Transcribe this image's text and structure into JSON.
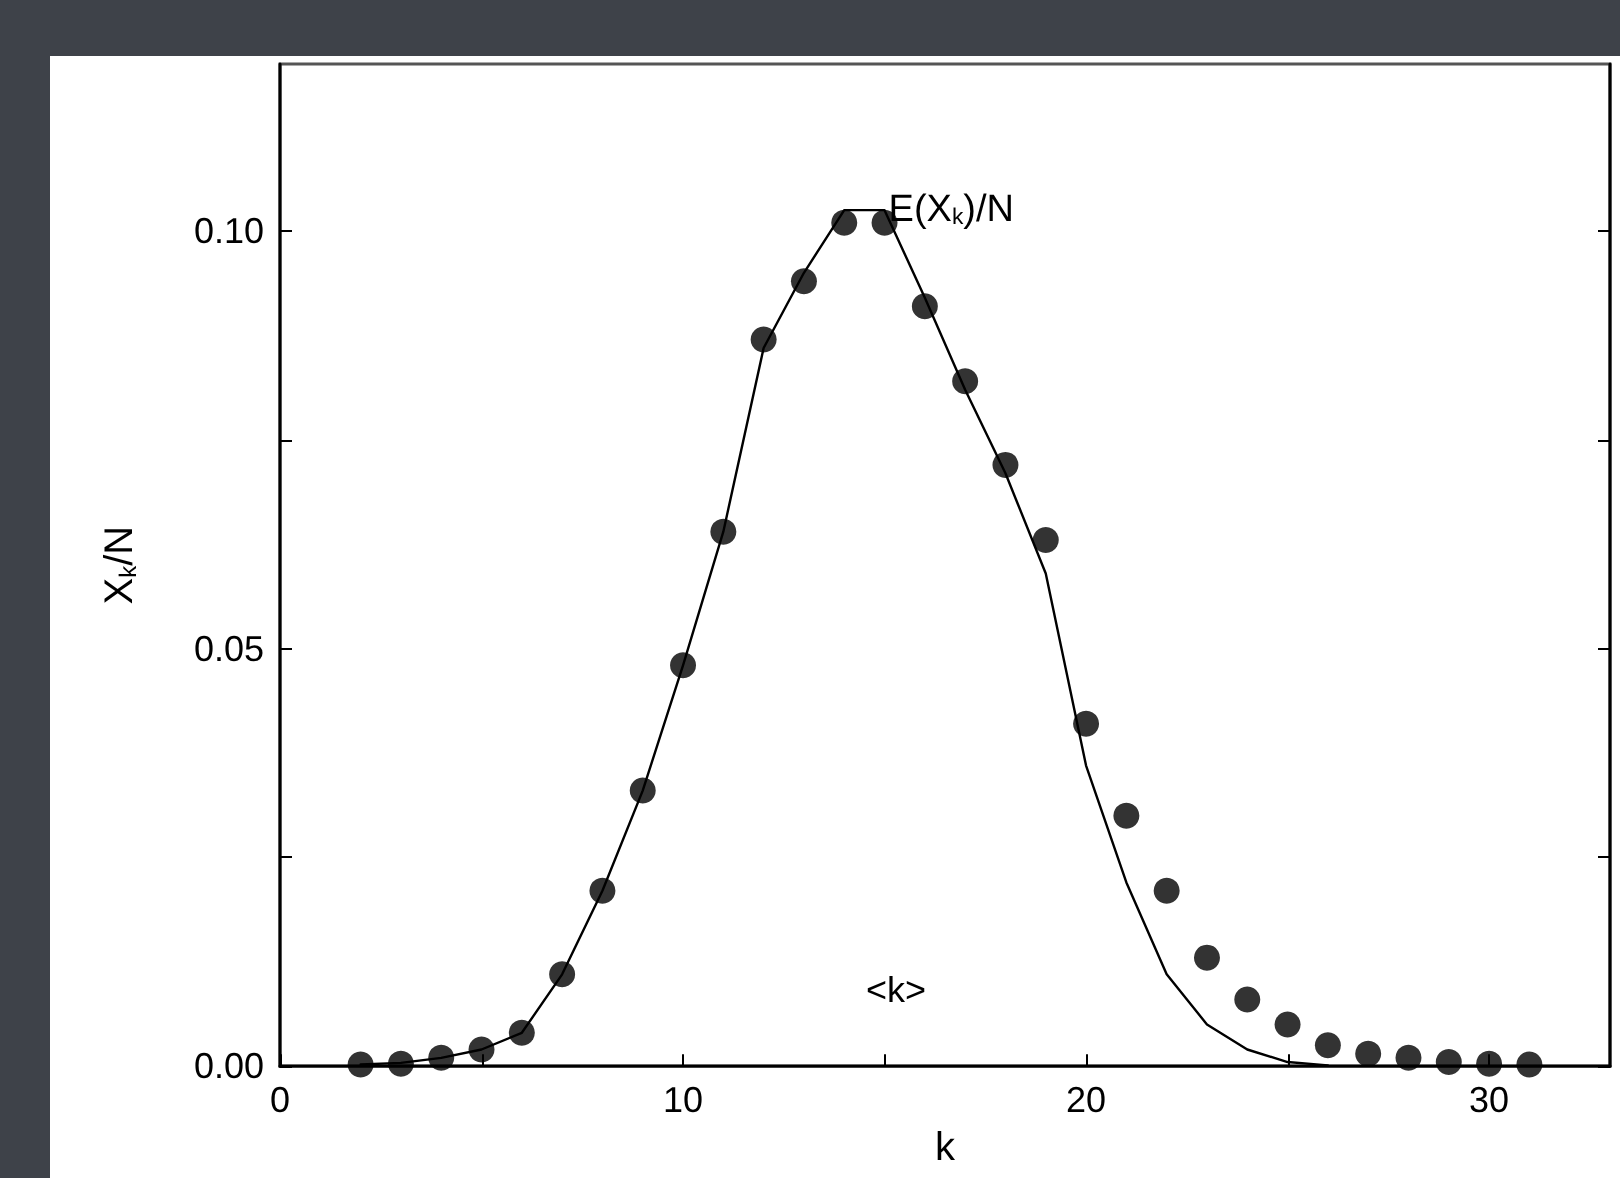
{
  "chart_data": {
    "type": "scatter",
    "xlabel": "k",
    "ylabel": "X$_{k}$/N",
    "xlim": [
      0,
      33
    ],
    "ylim": [
      0,
      0.12
    ],
    "xticks": [
      0,
      {
        "value": 5,
        "label": null
      },
      10,
      {
        "value": 15,
        "label": null
      },
      20,
      {
        "value": 25,
        "label": null
      },
      30
    ],
    "yticks": [
      {
        "value": 0,
        "label": "0.00"
      },
      {
        "value": 0.025,
        "label": null
      },
      {
        "value": 0.05,
        "label": "0.05"
      },
      {
        "value": 0.075,
        "label": null
      },
      {
        "value": 0.1,
        "label": "0.10"
      }
    ],
    "grid": false,
    "legend": false,
    "series": [
      {
        "type": "line",
        "name": "E(X$_{k}$)/N",
        "color": "#000000",
        "marker": "none",
        "line_style": "solid",
        "x": [
          2,
          3,
          4,
          5,
          6,
          7,
          8,
          9,
          10,
          11,
          12,
          13,
          14,
          15,
          16,
          17,
          18,
          19,
          20,
          21,
          22,
          23,
          24,
          25,
          26
        ],
        "values": [
          0.0002,
          0.0004,
          0.001,
          0.002,
          0.004,
          0.011,
          0.021,
          0.033,
          0.048,
          0.064,
          0.086,
          0.095,
          0.1025,
          0.1025,
          0.092,
          0.081,
          0.071,
          0.059,
          0.036,
          0.022,
          0.011,
          0.005,
          0.002,
          0.0005,
          0.0001
        ]
      },
      {
        "color": "#000000",
        "marker": "circle",
        "x": [
          2,
          3,
          4,
          5,
          6,
          7,
          8,
          9,
          10,
          11,
          12,
          13,
          14,
          15,
          16,
          17,
          18,
          19,
          20,
          21,
          22,
          23,
          24,
          25,
          26,
          27,
          28,
          29,
          30,
          31
        ],
        "values": [
          0.0002,
          0.0003,
          0.001,
          0.002,
          0.004,
          0.011,
          0.021,
          0.033,
          0.048,
          0.064,
          0.087,
          0.094,
          0.101,
          0.101,
          0.091,
          0.082,
          0.072,
          0.063,
          0.041,
          0.03,
          0.021,
          0.013,
          0.008,
          0.005,
          0.0025,
          0.0015,
          0.001,
          0.0005,
          0.0003,
          0.0002
        ]
      }
    ],
    "annotations": [
      "<k>"
    ]
  }
}
